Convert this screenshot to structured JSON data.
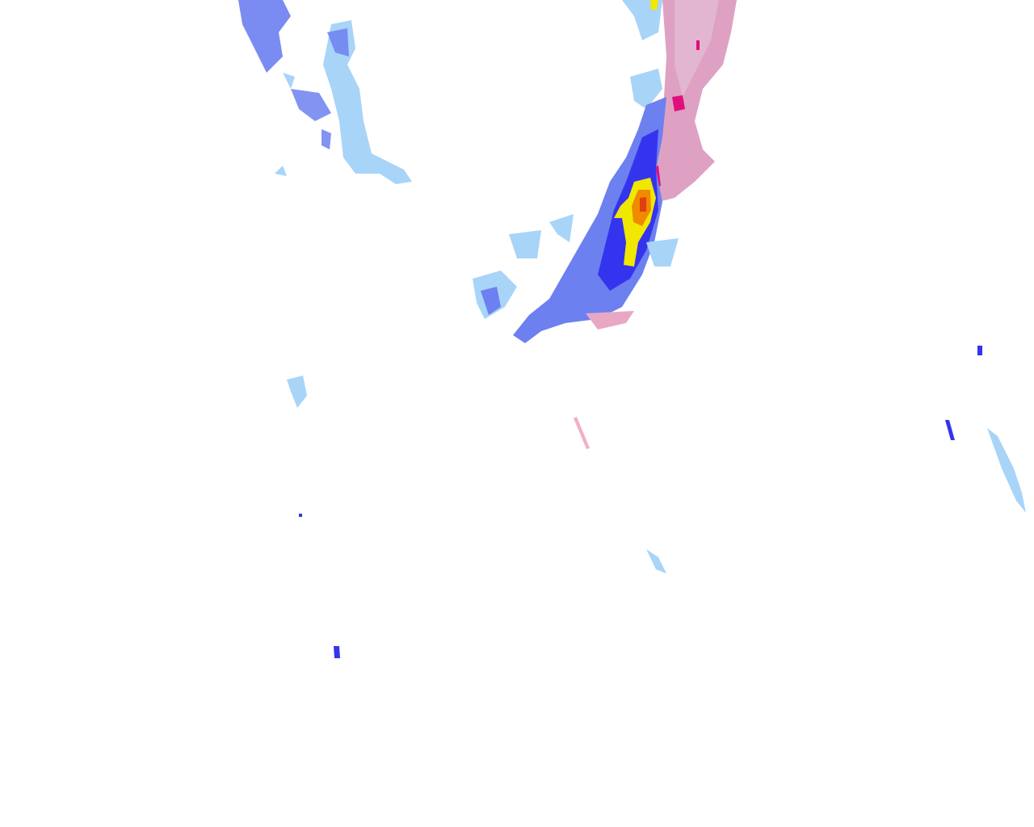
{
  "map": {
    "layer": "precipitation-radar-overlay",
    "colors": {
      "light_rain": "#a8d4f8",
      "moderate_rain": "#6c80f0",
      "heavy_rain": "#3434ee",
      "intense": "#f0e800",
      "very_intense": "#f08a00",
      "extreme": "#e04010",
      "mixed_light": "#e2a8c8",
      "mixed_moderate": "#d080b0",
      "mixed_heavy": "#e0107a"
    }
  }
}
